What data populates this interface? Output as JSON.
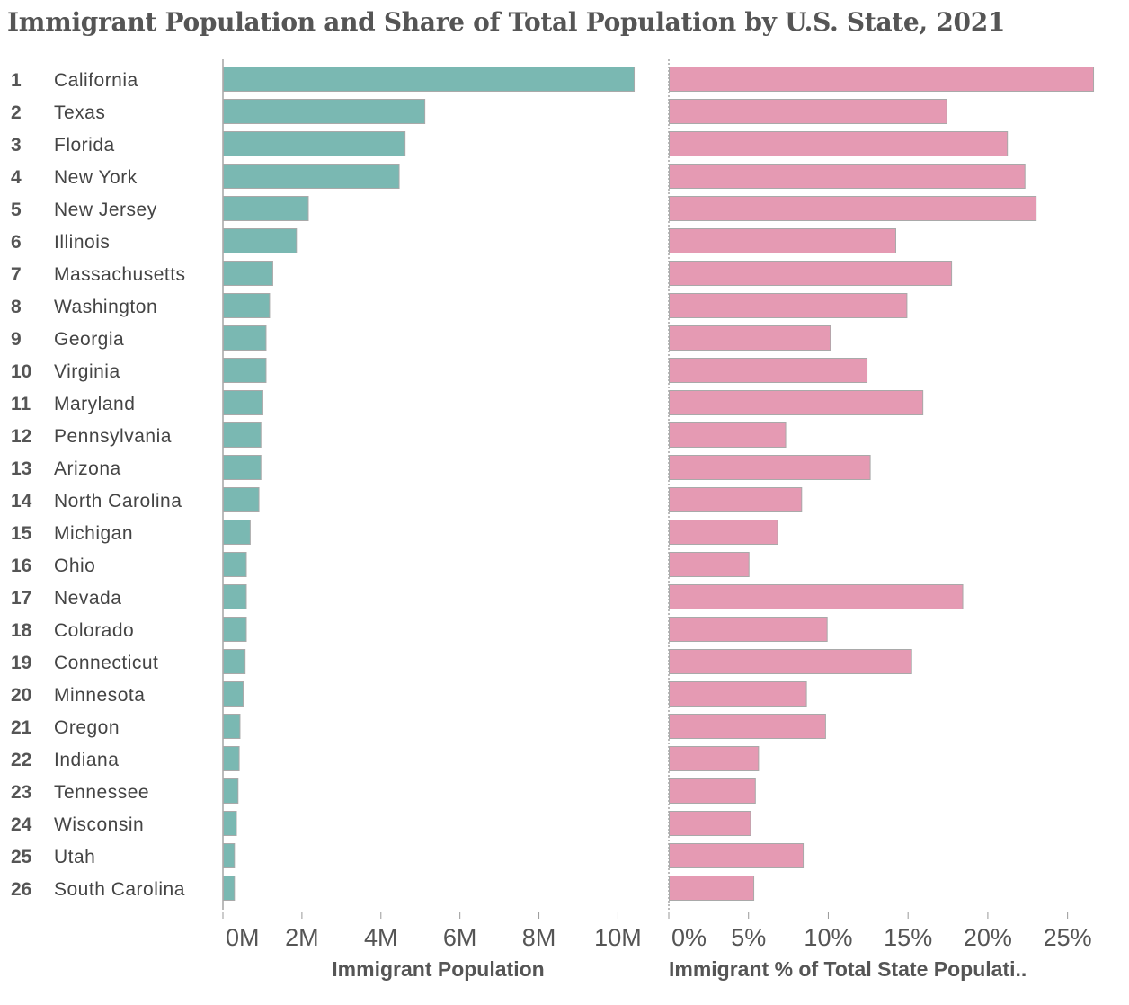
{
  "chart_data": {
    "type": "bar",
    "title": "Immigrant Population and Share of Total Population by U.S. State, 2021",
    "categories": [
      {
        "rank": "1",
        "state": "California"
      },
      {
        "rank": "2",
        "state": "Texas"
      },
      {
        "rank": "3",
        "state": "Florida"
      },
      {
        "rank": "4",
        "state": "New York"
      },
      {
        "rank": "5",
        "state": "New Jersey"
      },
      {
        "rank": "6",
        "state": "Illinois"
      },
      {
        "rank": "7",
        "state": "Massachusetts"
      },
      {
        "rank": "8",
        "state": "Washington"
      },
      {
        "rank": "9",
        "state": "Georgia"
      },
      {
        "rank": "10",
        "state": "Virginia"
      },
      {
        "rank": "11",
        "state": "Maryland"
      },
      {
        "rank": "12",
        "state": "Pennsylvania"
      },
      {
        "rank": "13",
        "state": "Arizona"
      },
      {
        "rank": "14",
        "state": "North Carolina"
      },
      {
        "rank": "15",
        "state": "Michigan"
      },
      {
        "rank": "16",
        "state": "Ohio"
      },
      {
        "rank": "17",
        "state": "Nevada"
      },
      {
        "rank": "18",
        "state": "Colorado"
      },
      {
        "rank": "19",
        "state": "Connecticut"
      },
      {
        "rank": "20",
        "state": "Minnesota"
      },
      {
        "rank": "21",
        "state": "Oregon"
      },
      {
        "rank": "22",
        "state": "Indiana"
      },
      {
        "rank": "23",
        "state": "Tennessee"
      },
      {
        "rank": "24",
        "state": "Wisconsin"
      },
      {
        "rank": "25",
        "state": "Utah"
      },
      {
        "rank": "26",
        "state": "South Carolina"
      }
    ],
    "panels": [
      {
        "xlabel": "Immigrant Population",
        "xlim": [
          0,
          10.9
        ],
        "ticks": [
          {
            "value": 0,
            "label": "0M"
          },
          {
            "value": 2,
            "label": "2M"
          },
          {
            "value": 4,
            "label": "4M"
          },
          {
            "value": 6,
            "label": "6M"
          },
          {
            "value": 8,
            "label": "8M"
          },
          {
            "value": 10,
            "label": "10M"
          }
        ],
        "color": "#7ab8b2",
        "values": [
          10.4,
          5.1,
          4.6,
          4.45,
          2.15,
          1.85,
          1.25,
          1.17,
          1.08,
          1.08,
          1.0,
          0.95,
          0.95,
          0.9,
          0.68,
          0.58,
          0.58,
          0.58,
          0.55,
          0.5,
          0.42,
          0.4,
          0.37,
          0.33,
          0.28,
          0.28
        ]
      },
      {
        "xlabel": "Immigrant % of Total State Populati..",
        "xlim": [
          0,
          27.5
        ],
        "ticks": [
          {
            "value": 0,
            "label": "0%"
          },
          {
            "value": 5,
            "label": "5%"
          },
          {
            "value": 10,
            "label": "10%"
          },
          {
            "value": 15,
            "label": "15%"
          },
          {
            "value": 20,
            "label": "20%"
          },
          {
            "value": 25,
            "label": "25%"
          }
        ],
        "color": "#e59ab3",
        "values": [
          26.6,
          17.4,
          21.2,
          22.3,
          23.0,
          14.2,
          17.7,
          14.9,
          10.1,
          12.4,
          15.9,
          7.3,
          12.6,
          8.3,
          6.8,
          5.0,
          18.4,
          9.9,
          15.2,
          8.6,
          9.8,
          5.6,
          5.4,
          5.1,
          8.4,
          5.3
        ]
      }
    ],
    "grid": false,
    "legend": "none"
  }
}
